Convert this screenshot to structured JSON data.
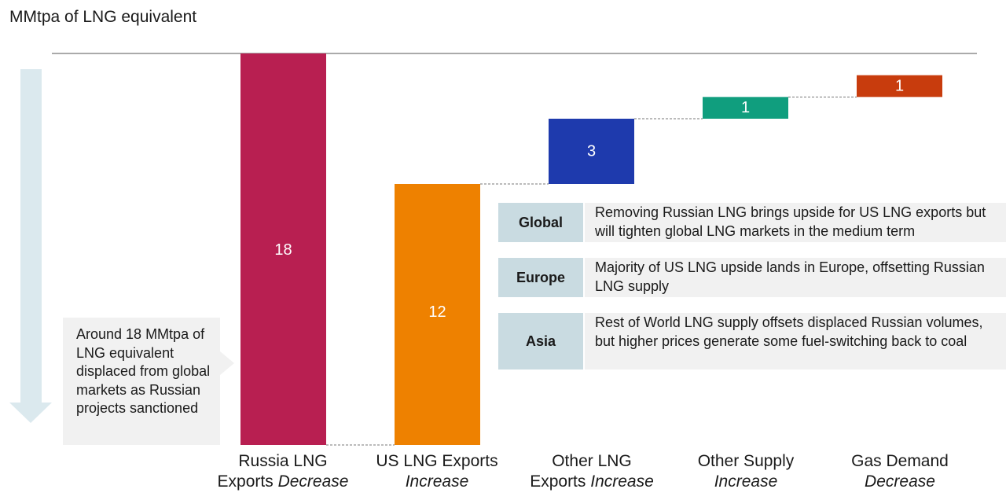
{
  "unit_label": "MMtpa of LNG equivalent",
  "callout": "Around 18 MMtpa of LNG equivalent displaced from global markets as Russian projects sanctioned",
  "regions": [
    {
      "name": "Global",
      "text": "Removing Russian LNG brings upside for US LNG exports but will tighten global LNG markets in the medium term"
    },
    {
      "name": "Europe",
      "text": "Majority of US LNG upside lands in Europe, offsetting Russian LNG supply"
    },
    {
      "name": "Asia",
      "text": "Rest of World LNG supply offsets displaced Russian volumes, but higher prices generate some fuel-switching back to coal"
    }
  ],
  "colors": {
    "russia": "#b81f51",
    "us": "#ee8100",
    "other_lng": "#1e3aad",
    "other_supply": "#109e7e",
    "gas_demand": "#c83c0d",
    "arrow": "#dbe9ee",
    "callout_bg": "#f1f1f1",
    "region_label_bg": "#c9dbe1"
  },
  "chart_data": {
    "type": "waterfall",
    "ylabel": "MMtpa of LNG equivalent",
    "categories": [
      {
        "line1": "Russia LNG",
        "line2_plain": "Exports ",
        "line2_italic": "Decrease"
      },
      {
        "line1": "US LNG Exports",
        "line2_plain": "",
        "line2_italic": "Increase"
      },
      {
        "line1": "Other LNG",
        "line2_plain": "Exports ",
        "line2_italic": "Increase"
      },
      {
        "line1": "Other Supply",
        "line2_plain": "",
        "line2_italic": "Increase"
      },
      {
        "line1": "Gas Demand",
        "line2_plain": "",
        "line2_italic": "Decrease"
      }
    ],
    "values": [
      18,
      12,
      3,
      1,
      1
    ],
    "value_labels": [
      "18",
      "12",
      "3",
      "1",
      "1"
    ]
  }
}
